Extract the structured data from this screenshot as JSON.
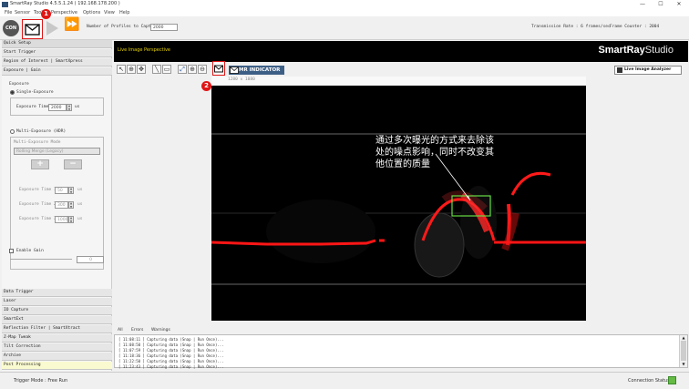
{
  "app": {
    "title": "SmartRay Studio 4.5.5.1.24 ( 192.168.178.200 )"
  },
  "window_controls": [
    "—",
    "☐",
    "✕"
  ],
  "menu": [
    "File",
    "Sensor",
    "Tools",
    "Perspective",
    "Options",
    "View",
    "Help"
  ],
  "toolbar": {
    "connect_label": "CON",
    "profiles_label": "Number of Profiles to Capture",
    "profiles_value": "2000",
    "transmission_rate": "Transmission Rate : 6 frames/sec",
    "frame_counter": "Frame Counter : 2004"
  },
  "left_panel": {
    "top_items": [
      "Quick Setup",
      "Start Trigger",
      "Region of Interest | SmartXpress",
      "Exposure | Gain"
    ],
    "exposure_group_title": "Exposure",
    "single_exposure_label": "Single-Exposure",
    "exposure_time_label": "Exposure Time",
    "exposure_time_value": "2000",
    "exposure_unit": "us",
    "multi_exposure_label": "Multi-Exposure (HDR)",
    "multi_mode_label": "Multi-Exposure Mode",
    "multi_mode_value": "Rolling Merge (Legacy)",
    "exposure_times": [
      {
        "label": "Exposure Time 1",
        "value": "50"
      },
      {
        "label": "Exposure Time 2",
        "value": "300"
      },
      {
        "label": "Exposure Time 3",
        "value": "1000"
      }
    ],
    "gain_label": "Enable Gain",
    "gain_value": "0",
    "bottom_items": [
      "Data Trigger",
      "Laser",
      "IO Capture",
      "SmartExt",
      "Reflection Filter | SmartXtract",
      "Z-Map Tweak",
      "Tilt Correction",
      "Archive",
      "Post Processing"
    ]
  },
  "view": {
    "live_title": "Live Image Perspective",
    "brand_main": "SmartRay",
    "brand_sub": "Studio",
    "mr_indicator": "MR INDICATOR",
    "live_image_analyzer": "Live Image Analyzer",
    "coord_readout": "1280 x 1080",
    "annotation": "通过多次曝光的方式来去除该处的噪点影响，同时不改变其他位置的质量"
  },
  "badges": [
    "1",
    "2"
  ],
  "log": {
    "tabs": [
      "All",
      "Errors",
      "Warnings"
    ],
    "lines": [
      "[ 11:08:11 ] Capturing data (Snap | Run Once)...",
      "[ 11:08:50 ] Capturing data (Snap | Run Once)...",
      "[ 11:07:59 ] Capturing data (Snap | Run Once)...",
      "[ 11:18:36 ] Capturing data (Snap | Run Once)...",
      "[ 11:22:50 ] Capturing data (Snap | Run Once)...",
      "[ 11:23:43 ] Capturing data (Snap | Run Once)..."
    ]
  },
  "status": {
    "trigger_mode": "Trigger Mode : Free Run",
    "connection": "Connection Status"
  },
  "colors": {
    "accent_red": "#e01515",
    "highlight_green": "#66dd44",
    "indicator_blue": "#3d5f86",
    "live_yellow": "#e6d200"
  }
}
